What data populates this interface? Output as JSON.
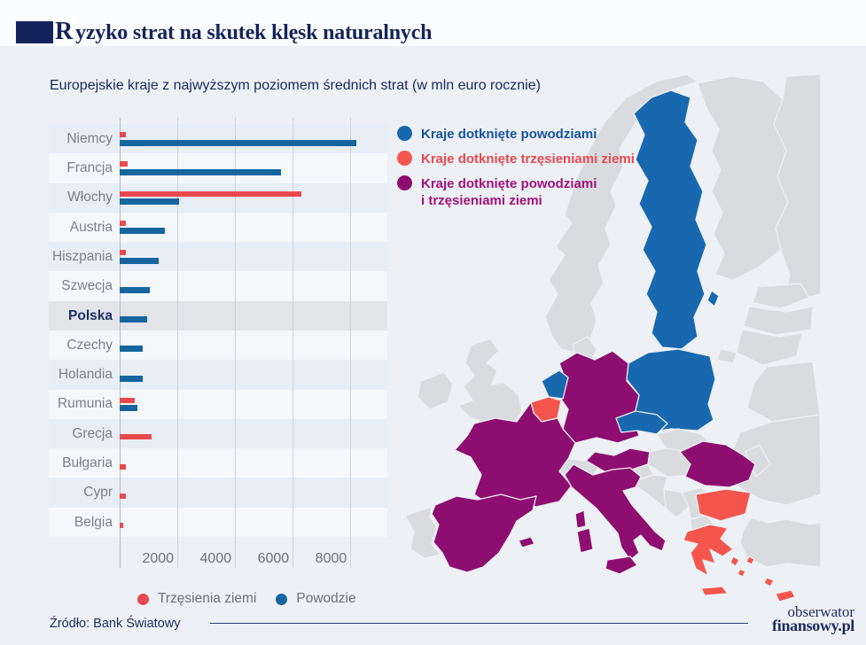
{
  "header": {
    "title_first_letter": "R",
    "title_rest": "yzyko strat na skutek klęsk naturalnych",
    "subtitle": "Europejskie kraje z najwyższym poziomem średnich strat (w mln euro rocznie)"
  },
  "chart_data": {
    "type": "bar",
    "orientation": "horizontal",
    "title": "Europejskie kraje z najwyższym poziomem średnich strat (w mln euro rocznie)",
    "unit": "mln euro rocznie",
    "categories": [
      "Niemcy",
      "Francja",
      "Włochy",
      "Austria",
      "Hiszpania",
      "Szwecja",
      "Polska",
      "Czechy",
      "Holandia",
      "Rumunia",
      "Grecja",
      "Bułgaria",
      "Cypr",
      "Belgia"
    ],
    "series": [
      {
        "name": "Trzęsienia ziemi",
        "color": "#e8494e",
        "values": [
          230,
          285,
          6300,
          215,
          200,
          null,
          null,
          null,
          null,
          520,
          1120,
          200,
          200,
          110
        ]
      },
      {
        "name": "Powodzie",
        "color": "#15659e",
        "values": [
          8200,
          5590,
          2050,
          1570,
          1360,
          1050,
          950,
          800,
          800,
          615,
          null,
          null,
          null,
          null
        ]
      }
    ],
    "x_ticks": [
      2000,
      4000,
      6000,
      8000
    ],
    "xlim": [
      0,
      8800
    ],
    "grid": true,
    "legend_position": "bottom",
    "highlighted_category": "Polska"
  },
  "chart_legend": {
    "items": [
      {
        "label": "Trzęsienia ziemi",
        "color": "#e8494e"
      },
      {
        "label": "Powodzie",
        "color": "#15659e"
      }
    ]
  },
  "map": {
    "legend": [
      {
        "label": "Kraje dotknięte powodziami",
        "label2": "",
        "color": "#1768ae",
        "text_color": "#16549f"
      },
      {
        "label": "Kraje dotknięte trzęsieniami ziemi",
        "label2": "",
        "color": "#f4564e",
        "text_color": "#e8494e"
      },
      {
        "label": "Kraje dotknięte powodziami",
        "label2": "i trzęsieniami ziemi",
        "color": "#8e0d70",
        "text_color": "#a3117c"
      }
    ],
    "colors": {
      "flood": "#1768ae",
      "quake": "#f4564e",
      "both": "#8e0d70",
      "none": "#d9dbde"
    },
    "country_categories": {
      "sweden": "flood",
      "poland": "flood",
      "czechia": "flood",
      "netherlands": "flood",
      "germany": "both",
      "france": "both",
      "spain": "both",
      "italy": "both",
      "austria": "both",
      "romania": "both",
      "belgium": "quake",
      "bulgaria": "quake",
      "greece": "quake",
      "cyprus": "quake"
    }
  },
  "footer": {
    "source": "Źródło: Bank Światowy",
    "logo_line1": "obserwator",
    "logo_line2": "finansowy.pl"
  }
}
